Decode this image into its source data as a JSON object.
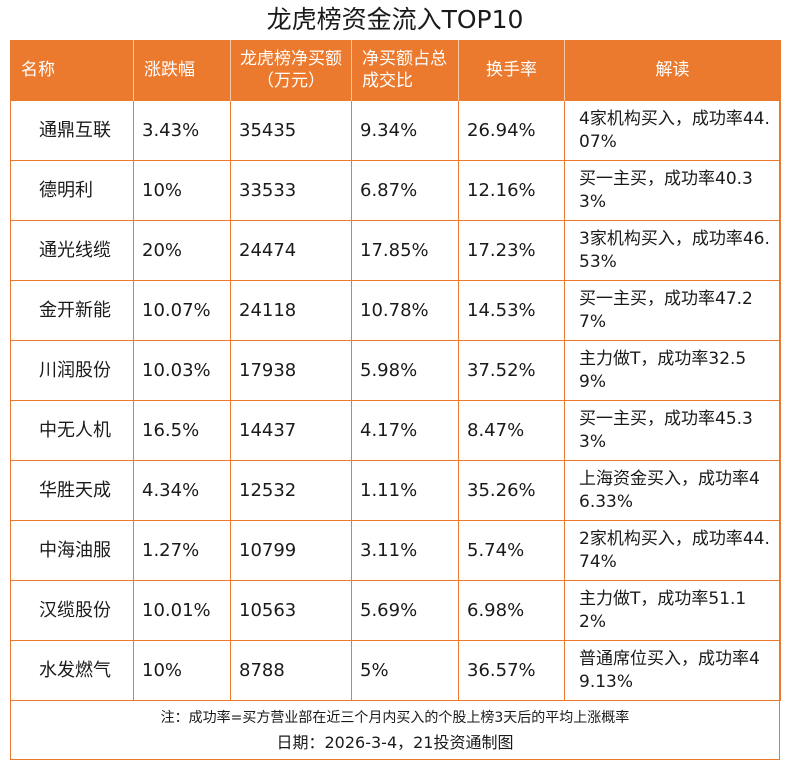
{
  "title": "龙虎榜资金流入TOP10",
  "colors": {
    "accent": "#ec7a2e",
    "header_text": "#ffffff"
  },
  "headers": {
    "name": "名称",
    "change": "涨跌幅",
    "net_buy": "龙虎榜净买额（万元）",
    "net_ratio": "净买额占总成交比",
    "turnover": "换手率",
    "note": "解读"
  },
  "rows": [
    {
      "name": "通鼎互联",
      "change": "3.43%",
      "net_buy": "35435",
      "net_ratio": "9.34%",
      "turnover": "26.94%",
      "note": "4家机构买入，成功率44.07%"
    },
    {
      "name": "德明利",
      "change": "10%",
      "net_buy": "33533",
      "net_ratio": "6.87%",
      "turnover": "12.16%",
      "note": "买一主买，成功率40.33%"
    },
    {
      "name": "通光线缆",
      "change": "20%",
      "net_buy": "24474",
      "net_ratio": "17.85%",
      "turnover": "17.23%",
      "note": "3家机构买入，成功率46.53%"
    },
    {
      "name": "金开新能",
      "change": "10.07%",
      "net_buy": "24118",
      "net_ratio": "10.78%",
      "turnover": "14.53%",
      "note": "买一主买，成功率47.27%"
    },
    {
      "name": "川润股份",
      "change": "10.03%",
      "net_buy": "17938",
      "net_ratio": "5.98%",
      "turnover": "37.52%",
      "note": "主力做T，成功率32.59%"
    },
    {
      "name": "中无人机",
      "change": "16.5%",
      "net_buy": "14437",
      "net_ratio": "4.17%",
      "turnover": "8.47%",
      "note": "买一主买，成功率45.33%"
    },
    {
      "name": "华胜天成",
      "change": "4.34%",
      "net_buy": "12532",
      "net_ratio": "1.11%",
      "turnover": "35.26%",
      "note": "上海资金买入，成功率46.33%"
    },
    {
      "name": "中海油服",
      "change": "1.27%",
      "net_buy": "10799",
      "net_ratio": "3.11%",
      "turnover": "5.74%",
      "note": "2家机构买入，成功率44.74%"
    },
    {
      "name": "汉缆股份",
      "change": "10.01%",
      "net_buy": "10563",
      "net_ratio": "5.69%",
      "turnover": "6.98%",
      "note": "主力做T，成功率51.12%"
    },
    {
      "name": "水发燃气",
      "change": "10%",
      "net_buy": "8788",
      "net_ratio": "5%",
      "turnover": "36.57%",
      "note": "普通席位买入，成功率49.13%"
    }
  ],
  "footnote": "注：成功率=买方营业部在近三个月内买入的个股上榜3天后的平均上涨概率",
  "date_line": "日期：2026-3-4，21投资通制图"
}
